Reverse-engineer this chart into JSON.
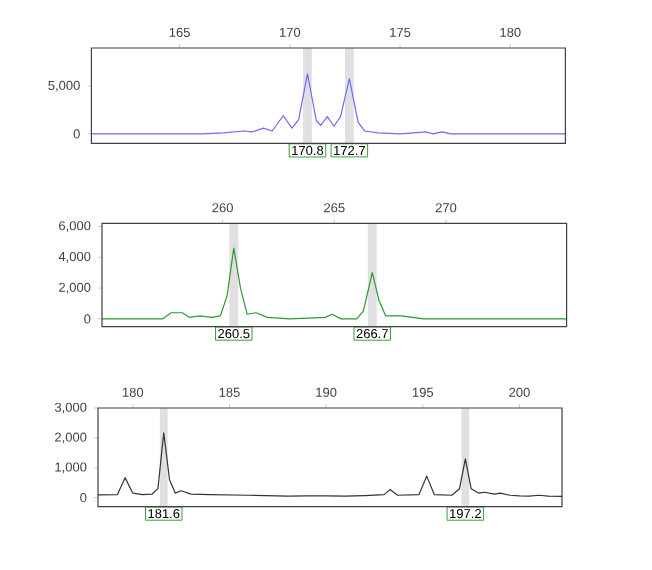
{
  "chart_data": [
    {
      "type": "line",
      "x": [
        161,
        166,
        167,
        167.9,
        168.3,
        168.8,
        169.2,
        169.7,
        170.1,
        170.4,
        170.8,
        171.2,
        171.4,
        171.7,
        172.0,
        172.3,
        172.7,
        173.1,
        173.4,
        174,
        175,
        176.2,
        176.5,
        176.9,
        177.3,
        182.5
      ],
      "series": [
        {
          "color": "#6a6aff",
          "values": [
            0,
            0,
            100,
            300,
            200,
            600,
            300,
            1900,
            600,
            1500,
            6300,
            1400,
            900,
            1800,
            800,
            1800,
            5800,
            1200,
            300,
            100,
            0,
            200,
            0,
            200,
            0,
            0
          ]
        }
      ],
      "xlim": [
        161,
        182.5
      ],
      "ylim": [
        -1000,
        9000
      ],
      "xticks": [
        165,
        170,
        175,
        180
      ],
      "yticks": [
        0,
        {
          "value": 5000,
          "label": "5,000"
        }
      ],
      "marker": "none",
      "line_style": "solid",
      "bands": [
        {
          "axis": "x",
          "from": 170.6,
          "to": 171.0,
          "label": "170.8",
          "color": "#e2dfe2"
        },
        {
          "axis": "x",
          "from": 172.5,
          "to": 172.9,
          "label": "172.7",
          "color": "#e2dfe2"
        }
      ]
    },
    {
      "type": "line",
      "x": [
        254.6,
        257.3,
        257.7,
        258.2,
        258.5,
        259,
        259.5,
        259.9,
        260.2,
        260.5,
        260.8,
        261.1,
        261.5,
        262,
        263,
        264.6,
        264.9,
        265.3,
        266,
        266.3,
        266.7,
        267.0,
        267.3,
        268,
        269,
        270,
        271,
        272,
        275.4
      ],
      "series": [
        {
          "color": "#2e9a2e",
          "values": [
            0,
            0,
            400,
            400,
            100,
            200,
            100,
            200,
            1500,
            4600,
            2000,
            300,
            400,
            100,
            0,
            100,
            300,
            0,
            0,
            500,
            3000,
            1200,
            200,
            200,
            0,
            0,
            0,
            0,
            0
          ]
        }
      ],
      "xlim": [
        254.6,
        275.4
      ],
      "ylim": [
        -500,
        6200
      ],
      "xticks": [
        260,
        265,
        270
      ],
      "yticks": [
        0,
        {
          "value": 2000,
          "label": "2,000"
        },
        {
          "value": 4000,
          "label": "4,000"
        },
        {
          "value": 6000,
          "label": "6,000"
        }
      ],
      "marker": "none",
      "line_style": "solid",
      "bands": [
        {
          "axis": "x",
          "from": 260.3,
          "to": 260.7,
          "label": "260.5",
          "color": "#e2dfe2"
        },
        {
          "axis": "x",
          "from": 266.5,
          "to": 266.9,
          "label": "266.7",
          "color": "#e2dfe2"
        }
      ]
    },
    {
      "type": "line",
      "x": [
        178.2,
        179.2,
        179.6,
        180,
        180.5,
        181,
        181.3,
        181.6,
        181.9,
        182.2,
        182.5,
        183,
        184,
        186,
        188,
        189,
        190,
        191,
        192,
        193,
        193.3,
        193.7,
        194.8,
        195.2,
        195.6,
        196.5,
        196.9,
        197.2,
        197.5,
        197.9,
        198.2,
        198.7,
        199,
        199.5,
        200,
        200.5,
        201,
        201.5,
        202.2
      ],
      "series": [
        {
          "color": "#333333",
          "values": [
            90,
            100,
            670,
            150,
            100,
            120,
            300,
            2170,
            600,
            150,
            230,
            120,
            100,
            80,
            50,
            60,
            60,
            50,
            70,
            100,
            270,
            80,
            100,
            720,
            100,
            80,
            300,
            1300,
            300,
            150,
            180,
            120,
            150,
            80,
            60,
            50,
            80,
            50,
            40
          ]
        }
      ],
      "xlim": [
        178.2,
        202.2
      ],
      "ylim": [
        -300,
        3000
      ],
      "xticks": [
        180,
        185,
        190,
        195,
        200
      ],
      "yticks": [
        0,
        {
          "value": 1000,
          "label": "1,000"
        },
        {
          "value": 2000,
          "label": "2,000"
        },
        {
          "value": 3000,
          "label": "3,000"
        }
      ],
      "marker": "none",
      "line_style": "solid",
      "bands": [
        {
          "axis": "x",
          "from": 181.4,
          "to": 181.8,
          "label": "181.6",
          "color": "#e2dfe2"
        },
        {
          "axis": "x",
          "from": 197.0,
          "to": 197.4,
          "label": "197.2",
          "color": "#e2dfe2"
        }
      ]
    }
  ]
}
